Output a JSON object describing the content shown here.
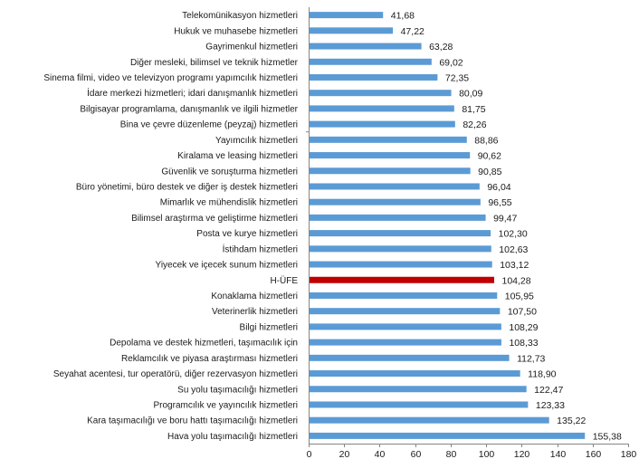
{
  "chart_data": {
    "type": "bar",
    "orientation": "horizontal",
    "title": "",
    "xlabel": "",
    "ylabel": "",
    "xlim": [
      0,
      180
    ],
    "xticks": [
      0,
      20,
      40,
      60,
      80,
      100,
      120,
      140,
      160,
      180
    ],
    "grid": false,
    "legend": "none",
    "bar_color": "#5b9bd5",
    "highlight_color": "#c00000",
    "categories": [
      "Telekomünikasyon hizmetleri",
      "Hukuk ve muhasebe hizmetleri",
      "Gayrimenkul hizmetleri",
      "Diğer mesleki, bilimsel ve teknik hizmetler",
      "Sinema filmi, video ve televizyon programı yapımcılık hizmetleri",
      "İdare merkezi hizmetleri; idari danışmanlık hizmetleri",
      "Bilgisayar programlama, danışmanlık ve ilgili hizmetler",
      "Bina ve çevre düzenleme (peyzaj) hizmetleri",
      "Yayımcılık hizmetleri",
      "Kiralama ve leasing hizmetleri",
      "Güvenlik ve soruşturma hizmetleri",
      "Büro yönetimi, büro destek ve diğer iş destek hizmetleri",
      "Mimarlık ve mühendislik hizmetleri",
      "Bilimsel araştırma ve geliştirme hizmetleri",
      "Posta ve kurye hizmetleri",
      "İstihdam hizmetleri",
      "Yiyecek ve içecek sunum hizmetleri",
      "H-ÜFE",
      "Konaklama hizmetleri",
      "Veterinerlik hizmetleri",
      "Bilgi hizmetleri",
      "Depolama ve destek hizmetleri, taşımacılık için",
      "Reklamcılık ve piyasa araştırması hizmetleri",
      "Seyahat acentesi, tur operatörü, diğer rezervasyon hizmetleri",
      "Su yolu taşımacılığı hizmetleri",
      "Programcılık ve yayıncılık hizmetleri",
      "Kara taşımacılığı ve boru hattı taşımacılığı hizmetleri",
      "Hava yolu taşımacılığı hizmetleri"
    ],
    "values": [
      41.68,
      47.22,
      63.28,
      69.02,
      72.35,
      80.09,
      81.75,
      82.26,
      88.86,
      90.62,
      90.85,
      96.04,
      96.55,
      99.47,
      102.3,
      102.63,
      103.12,
      104.28,
      105.95,
      107.5,
      108.29,
      108.33,
      112.73,
      118.9,
      122.47,
      123.33,
      135.22,
      155.38
    ],
    "value_labels": [
      "41,68",
      "47,22",
      "63,28",
      "69,02",
      "72,35",
      "80,09",
      "81,75",
      "82,26",
      "88,86",
      "90,62",
      "90,85",
      "96,04",
      "96,55",
      "99,47",
      "102,30",
      "102,63",
      "103,12",
      "104,28",
      "105,95",
      "107,50",
      "108,29",
      "108,33",
      "112,73",
      "118,90",
      "122,47",
      "123,33",
      "135,22",
      "155,38"
    ],
    "highlighted": [
      "H-ÜFE"
    ]
  }
}
